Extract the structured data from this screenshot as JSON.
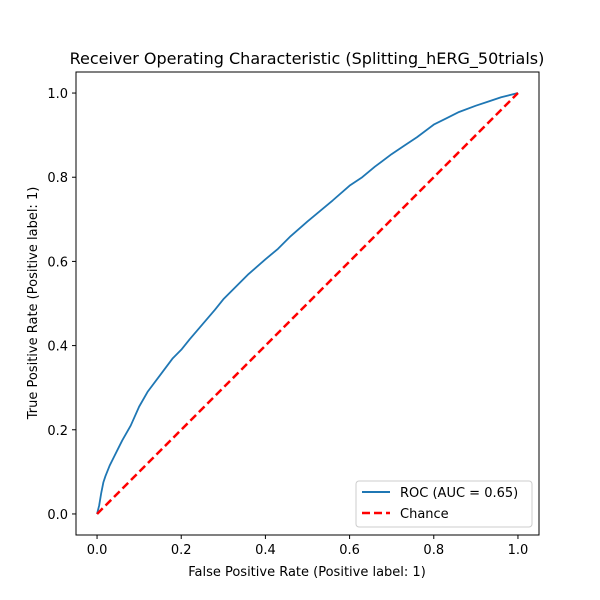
{
  "chart_data": {
    "type": "line",
    "title": "Receiver Operating Characteristic (Splitting_hERG_50trials)",
    "xlabel": "False Positive Rate (Positive label: 1)",
    "ylabel": "True Positive Rate (Positive label: 1)",
    "xlim": [
      -0.05,
      1.05
    ],
    "ylim": [
      -0.05,
      1.05
    ],
    "xticks": [
      0.0,
      0.2,
      0.4,
      0.6,
      0.8,
      1.0
    ],
    "yticks": [
      0.0,
      0.2,
      0.4,
      0.6,
      0.8,
      1.0
    ],
    "xtick_labels": [
      "0.0",
      "0.2",
      "0.4",
      "0.6",
      "0.8",
      "1.0"
    ],
    "ytick_labels": [
      "0.0",
      "0.2",
      "0.4",
      "0.6",
      "0.8",
      "1.0"
    ],
    "grid": false,
    "legend_position": "lower-right",
    "series": [
      {
        "name": "ROC (AUC = 0.65)",
        "color": "#1f77b4",
        "style": "solid",
        "x": [
          0.0,
          0.005,
          0.01,
          0.015,
          0.02,
          0.03,
          0.04,
          0.05,
          0.06,
          0.08,
          0.1,
          0.12,
          0.15,
          0.18,
          0.2,
          0.22,
          0.25,
          0.28,
          0.3,
          0.33,
          0.36,
          0.4,
          0.43,
          0.46,
          0.5,
          0.53,
          0.56,
          0.6,
          0.63,
          0.66,
          0.7,
          0.73,
          0.76,
          0.8,
          0.83,
          0.86,
          0.9,
          0.93,
          0.96,
          0.98,
          1.0
        ],
        "y": [
          0.0,
          0.02,
          0.05,
          0.075,
          0.09,
          0.115,
          0.135,
          0.155,
          0.175,
          0.21,
          0.255,
          0.29,
          0.33,
          0.37,
          0.39,
          0.415,
          0.45,
          0.485,
          0.51,
          0.54,
          0.57,
          0.605,
          0.63,
          0.66,
          0.695,
          0.72,
          0.745,
          0.78,
          0.8,
          0.825,
          0.855,
          0.875,
          0.895,
          0.925,
          0.94,
          0.955,
          0.97,
          0.98,
          0.99,
          0.995,
          1.0
        ]
      },
      {
        "name": "Chance",
        "color": "#ff0000",
        "style": "dashed",
        "x": [
          0.0,
          1.0
        ],
        "y": [
          0.0,
          1.0
        ]
      }
    ]
  }
}
